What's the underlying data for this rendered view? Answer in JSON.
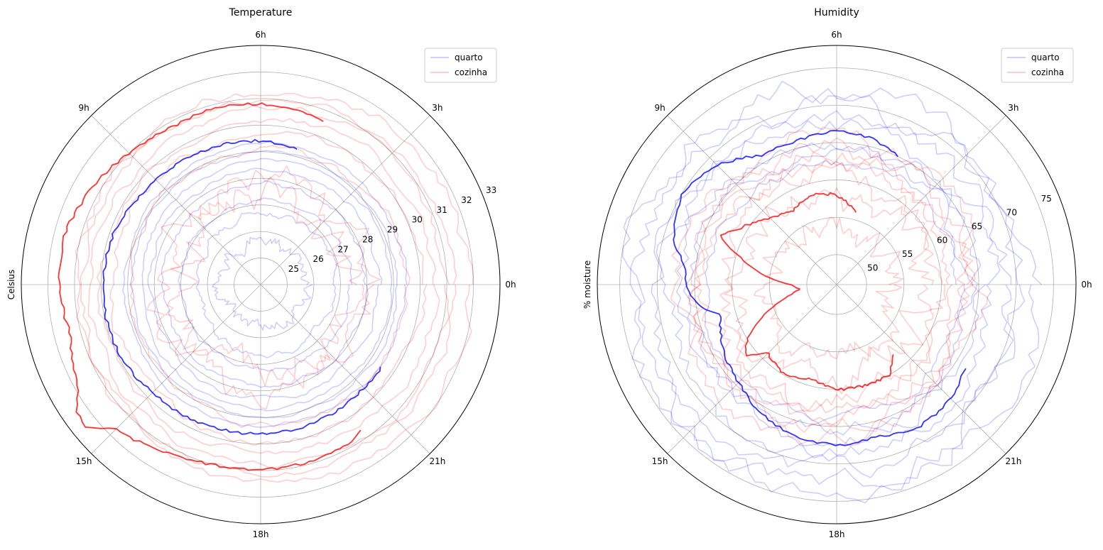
{
  "chart_data": [
    {
      "type": "polar-line",
      "title": "Temperature",
      "ylabel": "Celsius",
      "theta_unit": "hour",
      "theta_range": [
        0,
        24
      ],
      "theta_ticks": [
        0,
        3,
        6,
        9,
        12,
        15,
        18,
        21
      ],
      "theta_tick_labels": [
        "0h",
        "3h",
        "6h",
        "9h",
        "",
        "15h",
        "18h",
        "21h"
      ],
      "rlim": [
        24,
        33
      ],
      "r_ticks": [
        25,
        26,
        27,
        28,
        29,
        30,
        31,
        32,
        33
      ],
      "r_tick_labels": [
        "25",
        "26",
        "27",
        "28",
        "29",
        "30",
        "31",
        "32",
        "33"
      ],
      "grid": true,
      "legend": {
        "placement": "top-right",
        "entries": [
          {
            "label": "quarto",
            "color": "#0000ff"
          },
          {
            "label": "cozinha",
            "color": "#ff0000"
          }
        ]
      },
      "series": [
        {
          "name": "quarto",
          "color": "#0000ff",
          "opacity": 0.2,
          "kind": "daily",
          "days": [
            {
              "base": 25.6,
              "amp": 0.15,
              "noise": 0.35
            },
            {
              "base": 26.6,
              "amp": 0.2,
              "noise": 0.2
            },
            {
              "base": 27.2,
              "amp": 0.2,
              "noise": 0.15
            },
            {
              "base": 27.8,
              "amp": 0.15,
              "noise": 0.15
            },
            {
              "base": 28.3,
              "amp": 0.15,
              "noise": 0.15
            },
            {
              "base": 28.7,
              "amp": 0.2,
              "noise": 0.12
            },
            {
              "base": 29.0,
              "amp": 0.15,
              "noise": 0.12
            },
            {
              "base": 29.3,
              "amp": 0.15,
              "noise": 0.12
            }
          ]
        },
        {
          "name": "cozinha",
          "color": "#ff0000",
          "opacity": 0.2,
          "kind": "daily",
          "days": [
            {
              "base": 27.3,
              "amp": 0.3,
              "noise": 0.9
            },
            {
              "base": 28.0,
              "amp": 0.3,
              "noise": 0.8
            },
            {
              "base": 29.2,
              "amp": 0.3,
              "noise": 0.25
            },
            {
              "base": 29.8,
              "amp": 0.3,
              "noise": 0.25
            },
            {
              "base": 30.3,
              "amp": 0.3,
              "noise": 0.25
            },
            {
              "base": 30.7,
              "amp": 0.35,
              "noise": 0.25
            },
            {
              "base": 31.0,
              "amp": 0.3,
              "noise": 0.25
            },
            {
              "base": 31.4,
              "amp": 0.45,
              "noise": 0.3
            }
          ]
        },
        {
          "name": "quarto",
          "color": "#0000ff",
          "opacity": 0.8,
          "kind": "current",
          "theta_start": 5.0,
          "theta_end": 21.7,
          "hours": [
            5,
            6,
            7,
            8,
            9,
            10,
            11,
            12,
            13,
            14,
            15,
            16,
            17,
            18,
            19,
            20,
            21,
            21.7
          ],
          "values": [
            29.3,
            29.4,
            29.45,
            29.5,
            29.55,
            29.7,
            29.9,
            29.9,
            29.95,
            29.9,
            29.75,
            29.7,
            29.65,
            29.6,
            29.6,
            29.55,
            29.5,
            29.5
          ]
        },
        {
          "name": "cozinha",
          "color": "#ff0000",
          "opacity": 0.8,
          "kind": "current",
          "theta_start": 4.6,
          "theta_end": 20.3,
          "hours": [
            4.6,
            5,
            6,
            7,
            8,
            9,
            10,
            11,
            12,
            13,
            14,
            14.3,
            14.6,
            15,
            16,
            17,
            18,
            19,
            20,
            20.3
          ],
          "values": [
            30.6,
            30.7,
            30.8,
            30.85,
            30.8,
            31.0,
            31.3,
            31.6,
            31.55,
            31.4,
            31.9,
            32.4,
            32.5,
            31.7,
            31.25,
            31.0,
            30.95,
            30.9,
            30.8,
            30.6
          ]
        }
      ]
    },
    {
      "type": "polar-line",
      "title": "Humidity",
      "ylabel": "% moisture",
      "theta_unit": "hour",
      "theta_range": [
        0,
        24
      ],
      "theta_ticks": [
        0,
        3,
        6,
        9,
        12,
        15,
        18,
        21
      ],
      "theta_tick_labels": [
        "0h",
        "3h",
        "6h",
        "9h",
        "",
        "15h",
        "18h",
        "21h"
      ],
      "rlim": [
        46,
        78
      ],
      "r_ticks": [
        50,
        55,
        60,
        65,
        70,
        75
      ],
      "r_tick_labels": [
        "50",
        "55",
        "60",
        "65",
        "70",
        "75"
      ],
      "grid": true,
      "legend": {
        "placement": "top-right",
        "entries": [
          {
            "label": "quarto",
            "color": "#0000ff"
          },
          {
            "label": "cozinha",
            "color": "#ff0000"
          }
        ]
      },
      "series": [
        {
          "name": "quarto",
          "color": "#0000ff",
          "opacity": 0.2,
          "kind": "daily",
          "days": [
            {
              "base": 63.0,
              "amp": 1.0,
              "noise": 1.0
            },
            {
              "base": 64.5,
              "amp": 1.0,
              "noise": 1.5
            },
            {
              "base": 66.0,
              "amp": 1.2,
              "noise": 1.8
            },
            {
              "base": 68.0,
              "amp": 1.2,
              "noise": 2.0
            },
            {
              "base": 70.0,
              "amp": 1.5,
              "noise": 2.2
            },
            {
              "base": 71.8,
              "amp": 1.5,
              "noise": 2.5
            },
            {
              "base": 73.0,
              "amp": 1.0,
              "noise": 2.5
            }
          ]
        },
        {
          "name": "cozinha",
          "color": "#ff0000",
          "opacity": 0.2,
          "kind": "daily",
          "days": [
            {
              "base": 54.5,
              "amp": 1.0,
              "noise": 2.5
            },
            {
              "base": 58.5,
              "amp": 1.0,
              "noise": 3.0
            },
            {
              "base": 61.0,
              "amp": 1.0,
              "noise": 2.5
            },
            {
              "base": 62.5,
              "amp": 1.0,
              "noise": 2.0
            },
            {
              "base": 63.5,
              "amp": 1.0,
              "noise": 2.0
            },
            {
              "base": 64.5,
              "amp": 1.0,
              "noise": 2.2
            },
            {
              "base": 66.0,
              "amp": 1.2,
              "noise": 2.2
            }
          ]
        },
        {
          "name": "quarto",
          "color": "#0000ff",
          "opacity": 0.8,
          "kind": "current",
          "theta_start": 4.3,
          "theta_end": 21.8,
          "hours": [
            4.3,
            5,
            6,
            7,
            8,
            9,
            10,
            11,
            11.5,
            12,
            12.5,
            13,
            14,
            15,
            16,
            17,
            18,
            19,
            20,
            21,
            21.8
          ],
          "values": [
            65.0,
            66.0,
            66.5,
            66.0,
            66.0,
            68.5,
            70.0,
            68.5,
            66.5,
            66.0,
            65.0,
            62.0,
            63.5,
            64.5,
            66.0,
            67.0,
            67.5,
            67.0,
            68.0,
            67.5,
            66.5
          ]
        },
        {
          "name": "cozinha",
          "color": "#ff0000",
          "opacity": 0.8,
          "kind": "current",
          "theta_start": 5.0,
          "theta_end": 20.6,
          "hours": [
            5,
            6,
            7,
            8,
            9,
            10,
            10.5,
            11,
            11.5,
            12,
            12.5,
            13,
            13.5,
            14,
            14.5,
            15,
            16,
            17,
            18,
            19,
            20,
            20.6
          ],
          "values": [
            56.0,
            58.0,
            58.5,
            57.5,
            58.5,
            61.0,
            63.0,
            59.0,
            56.0,
            52.0,
            51.0,
            53.0,
            56.5,
            59.5,
            61.5,
            59.0,
            60.0,
            59.0,
            60.0,
            60.0,
            60.0,
            58.0
          ]
        }
      ]
    }
  ]
}
